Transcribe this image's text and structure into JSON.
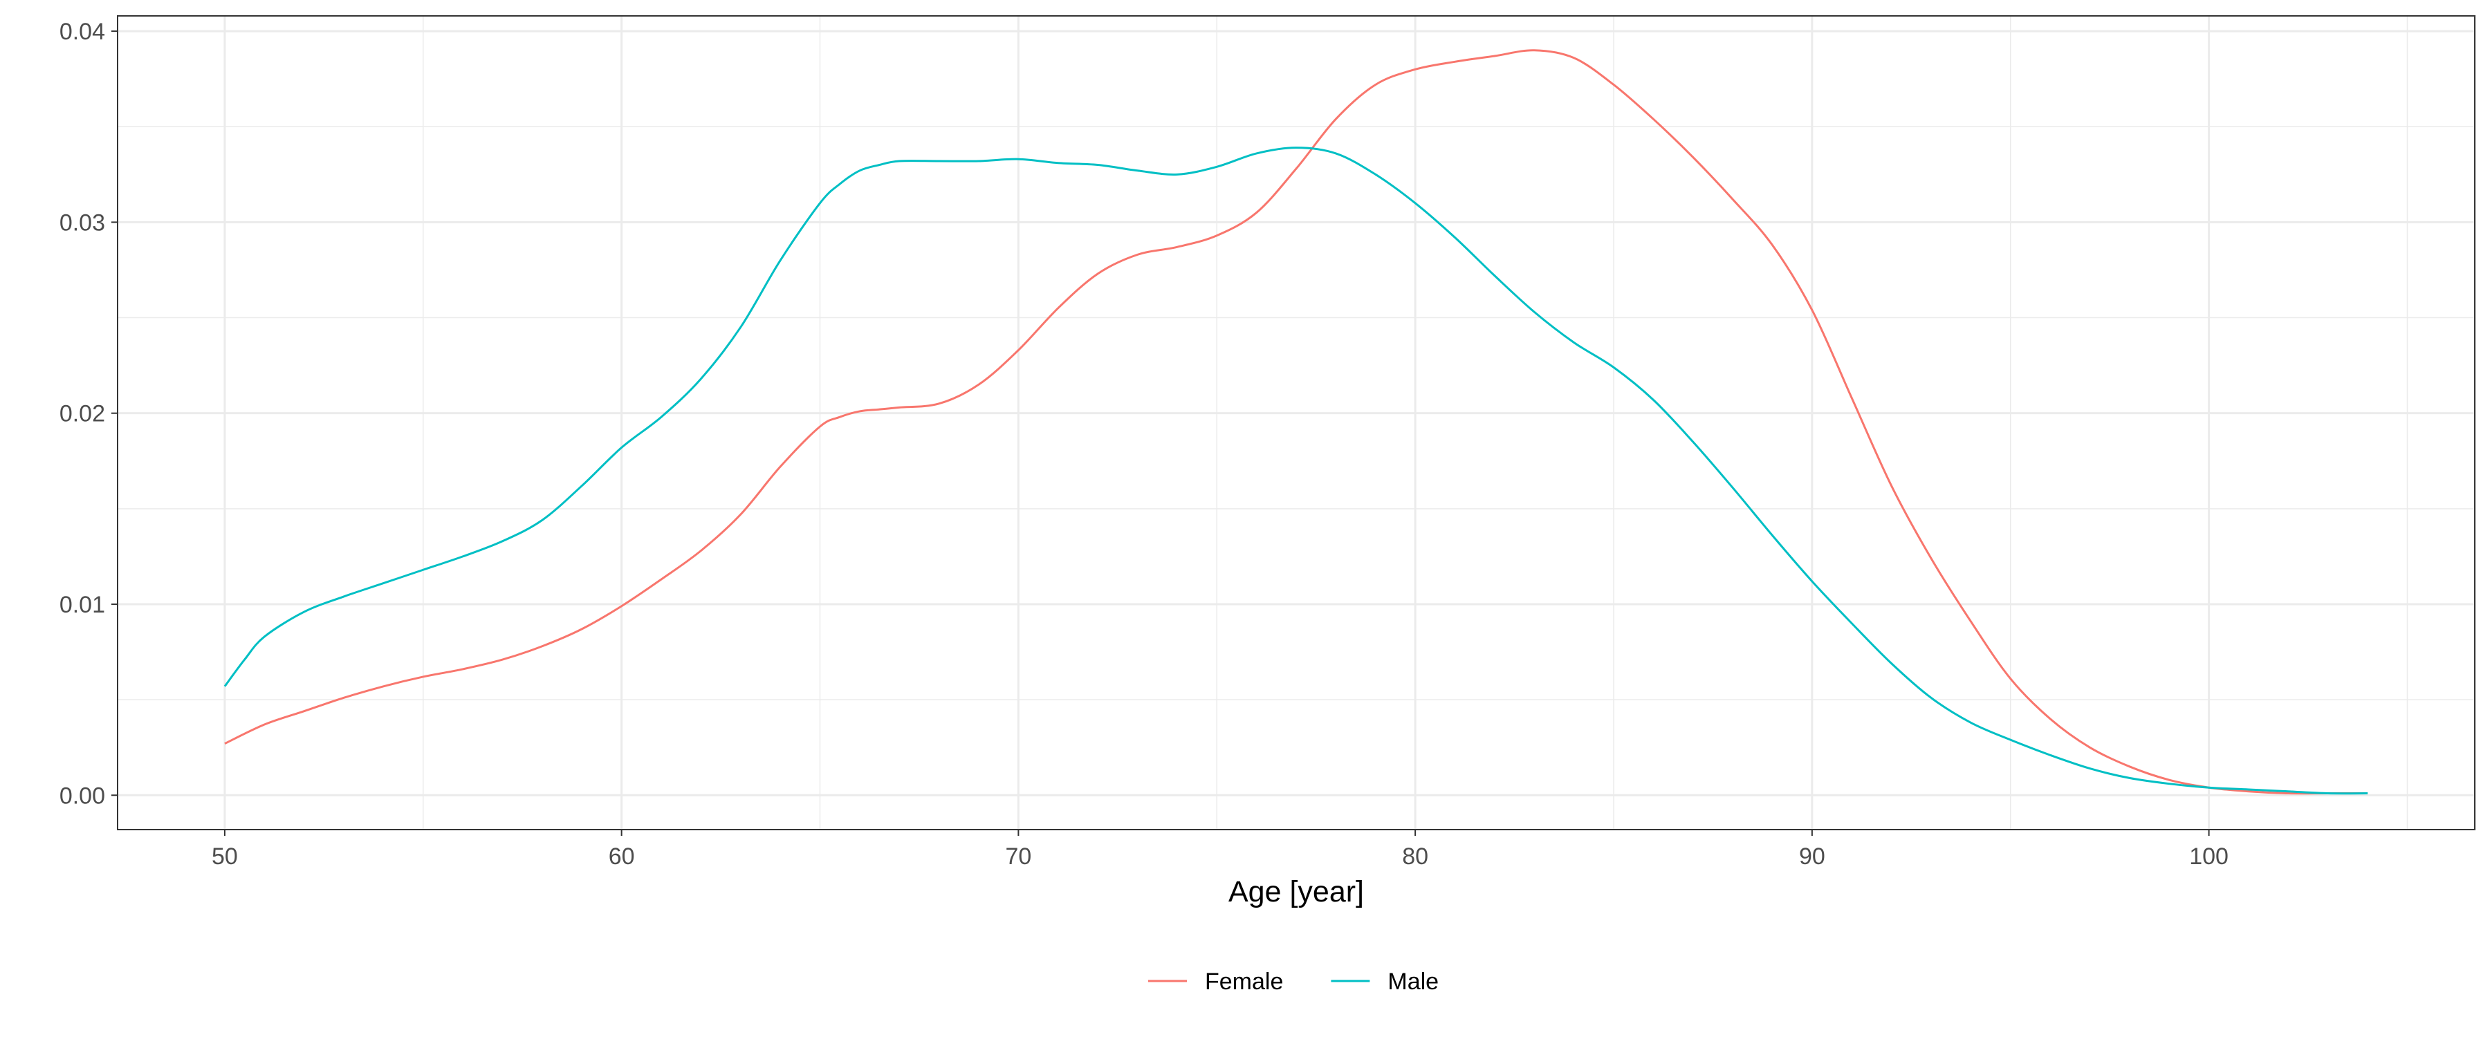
{
  "chart_data": {
    "type": "line",
    "title": "",
    "xlabel": "Age [year]",
    "ylabel": "",
    "xlim": [
      47.3,
      106.7
    ],
    "ylim": [
      -0.0018,
      0.0408
    ],
    "x_ticks": [
      50,
      60,
      70,
      80,
      90,
      100
    ],
    "x_tick_labels": [
      "50",
      "60",
      "70",
      "80",
      "90",
      "100"
    ],
    "y_ticks": [
      0,
      0.01,
      0.02,
      0.03,
      0.04
    ],
    "y_tick_labels": [
      "0.00",
      "0.01",
      "0.02",
      "0.03",
      "0.04"
    ],
    "grid": true,
    "legend_position": "bottom",
    "series": [
      {
        "name": "Female",
        "color": "#F8766D",
        "x": [
          50,
          51,
          52,
          53,
          54,
          55,
          56,
          57,
          58,
          59,
          60,
          61,
          62,
          63,
          64,
          65,
          65.5,
          66,
          66.5,
          67,
          68,
          69,
          70,
          71,
          72,
          73,
          74,
          75,
          76,
          77,
          78,
          79,
          80,
          81,
          82,
          83,
          84,
          85,
          86,
          87,
          88,
          89,
          90,
          91,
          92,
          93,
          94,
          95,
          96,
          97,
          98,
          99,
          100,
          101,
          102,
          103,
          104
        ],
        "y": [
          0.0027,
          0.0037,
          0.0044,
          0.0051,
          0.0057,
          0.0062,
          0.0066,
          0.0071,
          0.0078,
          0.0087,
          0.0099,
          0.0113,
          0.0128,
          0.0147,
          0.0172,
          0.0193,
          0.0198,
          0.0201,
          0.0202,
          0.0203,
          0.0205,
          0.0215,
          0.0233,
          0.0255,
          0.0273,
          0.0283,
          0.0287,
          0.0293,
          0.0305,
          0.0328,
          0.0354,
          0.0372,
          0.038,
          0.0384,
          0.0387,
          0.039,
          0.0386,
          0.0372,
          0.0354,
          0.0334,
          0.0312,
          0.0288,
          0.0254,
          0.0208,
          0.0162,
          0.0124,
          0.0091,
          0.0061,
          0.004,
          0.0025,
          0.0015,
          0.0008,
          0.0004,
          0.0002,
          0.0001,
          0.0001,
          0.0001
        ]
      },
      {
        "name": "Male",
        "color": "#00BFC4",
        "x": [
          50,
          50.5,
          51,
          52,
          53,
          54,
          55,
          56,
          57,
          58,
          59,
          60,
          61,
          62,
          63,
          64,
          65,
          65.5,
          66,
          66.5,
          67,
          68,
          69,
          70,
          71,
          72,
          73,
          74,
          75,
          76,
          77,
          78,
          79,
          80,
          81,
          82,
          83,
          84,
          85,
          86,
          87,
          88,
          89,
          90,
          91,
          92,
          93,
          94,
          95,
          96,
          97,
          98,
          99,
          100,
          101,
          102,
          103,
          104
        ],
        "y": [
          0.0057,
          0.0071,
          0.0083,
          0.0096,
          0.0104,
          0.0111,
          0.0118,
          0.0125,
          0.0133,
          0.0144,
          0.0162,
          0.0182,
          0.0198,
          0.0218,
          0.0245,
          0.028,
          0.031,
          0.032,
          0.0327,
          0.033,
          0.0332,
          0.0332,
          0.0332,
          0.0333,
          0.0331,
          0.033,
          0.0327,
          0.0325,
          0.0329,
          0.0336,
          0.0339,
          0.0336,
          0.0325,
          0.031,
          0.0292,
          0.0272,
          0.0253,
          0.0237,
          0.0224,
          0.0207,
          0.0185,
          0.0161,
          0.0136,
          0.0112,
          0.009,
          0.0069,
          0.0051,
          0.0038,
          0.0029,
          0.0021,
          0.0014,
          0.0009,
          0.0006,
          0.0004,
          0.0003,
          0.0002,
          0.0001,
          0.0001
        ]
      }
    ]
  }
}
